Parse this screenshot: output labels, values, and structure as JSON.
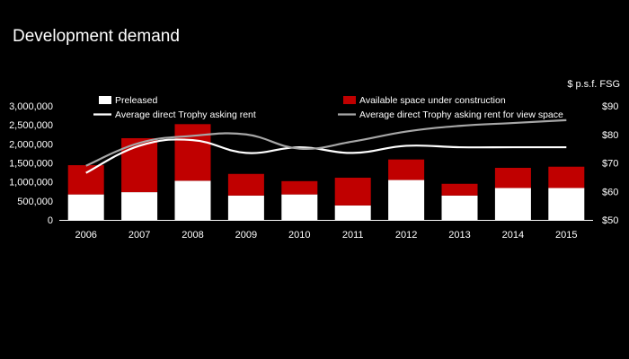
{
  "title": "Development demand",
  "chart_data": {
    "type": "bar",
    "categories": [
      "2006",
      "2007",
      "2008",
      "2009",
      "2010",
      "2011",
      "2012",
      "2013",
      "2014",
      "2015"
    ],
    "series": [
      {
        "name": "Preleased",
        "kind": "bar",
        "axis": "left",
        "color": "#ffffff",
        "values": [
          670000,
          730000,
          1030000,
          640000,
          670000,
          380000,
          1050000,
          640000,
          840000,
          840000
        ]
      },
      {
        "name": "Available space under construction",
        "kind": "bar",
        "axis": "left",
        "color": "#c00000",
        "values": [
          770000,
          1420000,
          1490000,
          570000,
          350000,
          730000,
          540000,
          310000,
          530000,
          560000
        ]
      },
      {
        "name": "Average direct Trophy asking rent",
        "kind": "line",
        "axis": "right",
        "color": "#ffffff",
        "values": [
          66.5,
          76,
          78,
          73.5,
          75.5,
          73.5,
          76,
          75.5,
          75.5,
          75.5
        ]
      },
      {
        "name": "Average direct Trophy asking rent for view space",
        "kind": "line",
        "axis": "right",
        "color": "#a6a6a6",
        "values": [
          69,
          77,
          79.5,
          80,
          75,
          77.5,
          81,
          83,
          84,
          85
        ]
      }
    ],
    "stacked": true,
    "ylim_left": [
      0,
      3000000
    ],
    "ylim_right": [
      50,
      90
    ],
    "left_ticks": [
      "0",
      "500,000",
      "1,000,000",
      "1,500,000",
      "2,000,000",
      "2,500,000",
      "3,000,000"
    ],
    "right_ticks": [
      "$50",
      "$60",
      "$70",
      "$80",
      "$90"
    ],
    "right_unit_label": "$ p.s.f. FSG",
    "grid": false,
    "legend_position": "top"
  }
}
